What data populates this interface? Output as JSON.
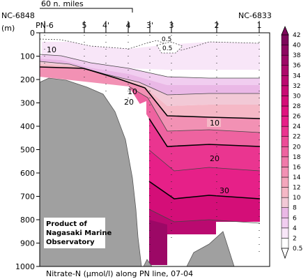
{
  "chart_data": {
    "type": "heatmap",
    "title": "Nitrate-N (µmol/l) along PN line, 07-04",
    "ylabel": "(m)",
    "ylim": [
      1000,
      0
    ],
    "y_ticks": [
      0,
      100,
      200,
      300,
      400,
      500,
      600,
      700,
      800,
      900,
      1000
    ],
    "stations": [
      "PN-6",
      "5",
      "4'",
      "4",
      "3'",
      "3",
      "2",
      "1"
    ],
    "station_sublabels": {
      "left": "NC-6848",
      "right": "NC-6833"
    },
    "scale_bar": "60 n. miles",
    "credit": [
      "Product of",
      "Nagasaki Marine",
      "Observatory"
    ],
    "colorbar": {
      "ticks": [
        "0.5",
        "2",
        "4",
        "6",
        "8",
        "10",
        "12",
        "14",
        "16",
        "18",
        "20",
        "22",
        "24",
        "26",
        "28",
        "30",
        "32",
        "34",
        "36",
        "38",
        "40",
        "42"
      ],
      "colors": [
        "#ffffff",
        "#f8e6f8",
        "#f1cdf0",
        "#eab8e6",
        "#f2c9d6",
        "#f5b8c6",
        "#f4a6bc",
        "#f291b4",
        "#f07aaa",
        "#ee63a0",
        "#ec4c97",
        "#ea3590",
        "#e62088",
        "#df147f",
        "#d40e78",
        "#c80c74",
        "#ba0a70",
        "#ac096b",
        "#9c0866",
        "#8c0860",
        "#7c085a"
      ]
    },
    "contour_labels": [
      "0.5",
      "0.5",
      "10",
      "10",
      "20",
      "10",
      "20",
      "30"
    ],
    "series": [
      {
        "name": "0.5",
        "points": [
          [
            0,
            55
          ],
          [
            1,
            50
          ],
          [
            2,
            55
          ],
          [
            3,
            60
          ],
          [
            4,
            60
          ],
          [
            5,
            55
          ],
          [
            6,
            50
          ],
          [
            7,
            50
          ]
        ]
      },
      {
        "name": "10",
        "points": [
          [
            0,
            135
          ],
          [
            1,
            140
          ],
          [
            2,
            160
          ],
          [
            3,
            225
          ],
          [
            4,
            280
          ],
          [
            5,
            310
          ],
          [
            6,
            325
          ],
          [
            7,
            330
          ]
        ]
      },
      {
        "name": "20",
        "points": [
          [
            3,
            260
          ],
          [
            4,
            320
          ],
          [
            5,
            430
          ],
          [
            6,
            460
          ],
          [
            7,
            480
          ]
        ]
      },
      {
        "name": "30",
        "points": [
          [
            4,
            560
          ],
          [
            5,
            660
          ],
          [
            6,
            700
          ],
          [
            7,
            720
          ]
        ]
      }
    ]
  }
}
